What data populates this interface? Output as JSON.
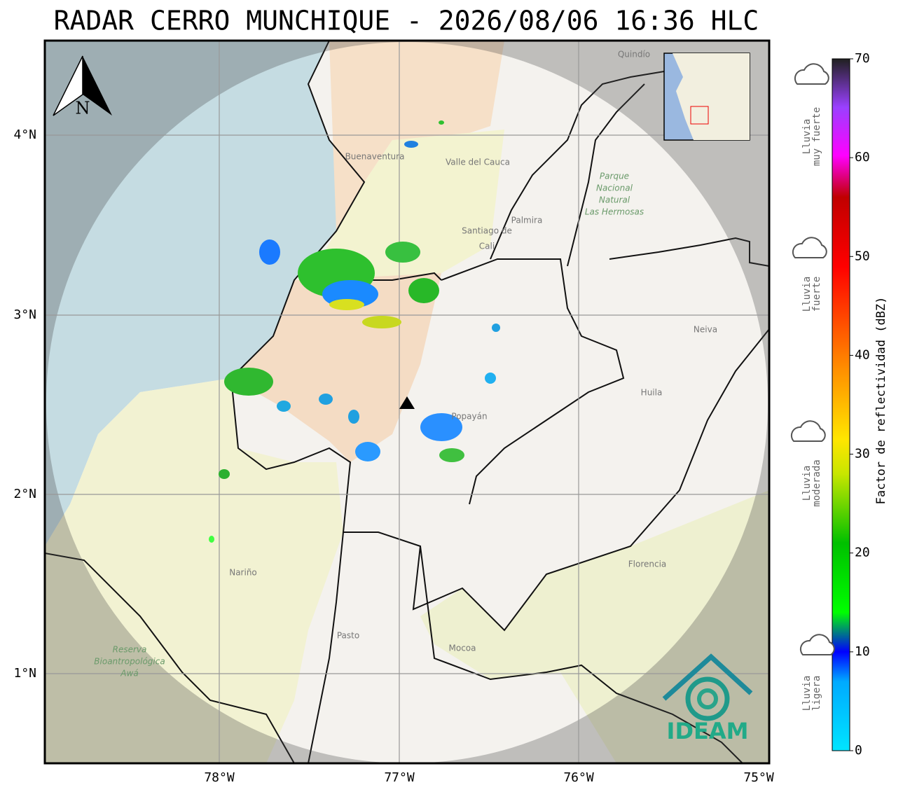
{
  "header": {
    "title": "RADAR CERRO MUNCHIQUE - 2026/08/06 16:36 HLC"
  },
  "axes": {
    "lon_labels": [
      "78°W",
      "77°W",
      "76°W",
      "75°W"
    ],
    "lat_labels": [
      "4°N",
      "3°N",
      "2°N",
      "1°N"
    ]
  },
  "north_arrow": "N",
  "colorbar": {
    "label": "Factor de reflectividad (dBZ)",
    "ticks": [
      0,
      10,
      20,
      30,
      40,
      50,
      60,
      70
    ]
  },
  "rain_levels": [
    {
      "lines": [
        "Lluvia",
        "muy fuerte"
      ]
    },
    {
      "lines": [
        "Lluvia",
        "fuerte"
      ]
    },
    {
      "lines": [
        "Lluvia",
        "moderada"
      ]
    },
    {
      "lines": [
        "Lluvia",
        "ligera"
      ]
    }
  ],
  "places": [
    "Buenaventura",
    "Valle del Cauca",
    "Santiago de",
    "Cali",
    "Palmira",
    "Parque",
    "Nacional",
    "Natural",
    "Las Hermosas",
    "Neiva",
    "Huila",
    "Popayán",
    "Nariño",
    "Florencia",
    "Pasto",
    "Mocoa",
    "Reserva",
    "Bioantropológica",
    "Awá",
    "Quindío"
  ],
  "logo": "IDEAM"
}
